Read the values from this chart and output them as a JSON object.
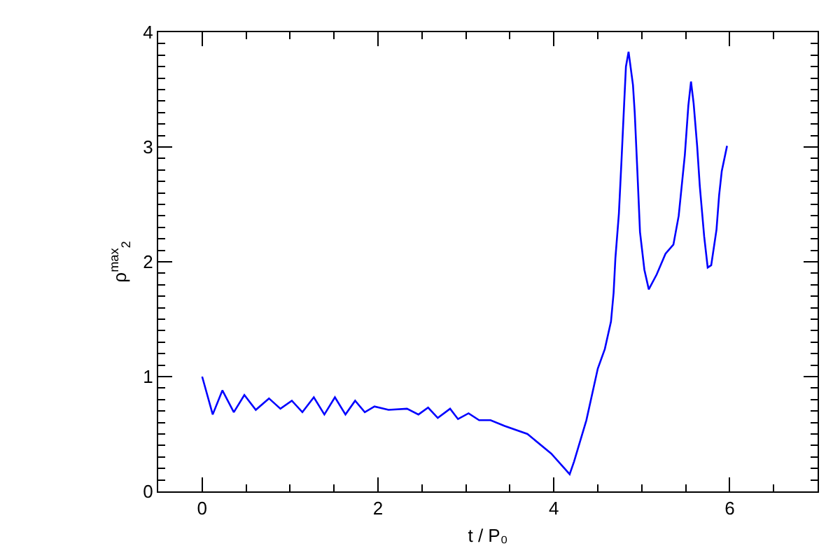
{
  "chart_data": {
    "type": "line",
    "xlabel": "t / P₀",
    "ylabel": "ρ$^{max}$$_{2}$",
    "xlim": [
      -0.5,
      7
    ],
    "ylim": [
      0,
      4
    ],
    "xticks": [
      {
        "value": -0.5,
        "label": null
      },
      0,
      {
        "value": 0.5,
        "label": null
      },
      {
        "value": 1,
        "label": null
      },
      {
        "value": 1.5,
        "label": null
      },
      2,
      {
        "value": 2.5,
        "label": null
      },
      {
        "value": 3,
        "label": null
      },
      {
        "value": 3.5,
        "label": null
      },
      4,
      {
        "value": 4.5,
        "label": null
      },
      {
        "value": 5,
        "label": null
      },
      {
        "value": 5.5,
        "label": null
      },
      6,
      {
        "value": 6.5,
        "label": null
      }
    ],
    "yticks": [
      0,
      {
        "value": 0.1,
        "label": null
      },
      {
        "value": 0.2,
        "label": null
      },
      {
        "value": 0.3,
        "label": null
      },
      {
        "value": 0.4,
        "label": null
      },
      {
        "value": 0.5,
        "label": null
      },
      {
        "value": 0.6,
        "label": null
      },
      {
        "value": 0.7,
        "label": null
      },
      {
        "value": 0.8,
        "label": null
      },
      {
        "value": 0.9,
        "label": null
      },
      1,
      {
        "value": 1.1,
        "label": null
      },
      {
        "value": 1.2,
        "label": null
      },
      {
        "value": 1.3,
        "label": null
      },
      {
        "value": 1.4,
        "label": null
      },
      {
        "value": 1.5,
        "label": null
      },
      {
        "value": 1.6,
        "label": null
      },
      {
        "value": 1.7,
        "label": null
      },
      {
        "value": 1.8,
        "label": null
      },
      {
        "value": 1.9,
        "label": null
      },
      2,
      {
        "value": 2.1,
        "label": null
      },
      {
        "value": 2.2,
        "label": null
      },
      {
        "value": 2.3,
        "label": null
      },
      {
        "value": 2.4,
        "label": null
      },
      {
        "value": 2.5,
        "label": null
      },
      {
        "value": 2.6,
        "label": null
      },
      {
        "value": 2.7,
        "label": null
      },
      {
        "value": 2.8,
        "label": null
      },
      {
        "value": 2.9,
        "label": null
      },
      3,
      {
        "value": 3.1,
        "label": null
      },
      {
        "value": 3.2,
        "label": null
      },
      {
        "value": 3.3,
        "label": null
      },
      {
        "value": 3.4,
        "label": null
      },
      {
        "value": 3.5,
        "label": null
      },
      {
        "value": 3.6,
        "label": null
      },
      {
        "value": 3.7,
        "label": null
      },
      {
        "value": 3.8,
        "label": null
      },
      {
        "value": 3.9,
        "label": null
      },
      4
    ],
    "grid": false,
    "marker": "none",
    "line_style": "solid",
    "x": [
      0,
      0.12,
      0.23,
      0.36,
      0.48,
      0.61,
      0.76,
      0.89,
      1.02,
      1.14,
      1.27,
      1.39,
      1.51,
      1.63,
      1.74,
      1.85,
      1.96,
      2.12,
      2.33,
      2.46,
      2.57,
      2.68,
      2.82,
      2.91,
      3.03,
      3.15,
      3.28,
      3.44,
      3.7,
      3.97,
      4.18,
      4.23,
      4.37,
      4.5,
      4.58,
      4.65,
      4.68,
      4.7,
      4.74,
      4.77,
      4.8,
      4.82,
      4.85,
      4.9,
      4.92,
      4.95,
      4.98,
      5.03,
      5.08,
      5.17,
      5.27,
      5.36,
      5.42,
      5.49,
      5.53,
      5.56,
      5.59,
      5.63,
      5.66,
      5.71,
      5.75,
      5.79,
      5.85,
      5.88,
      5.91,
      5.97
    ],
    "series": [
      {
        "color": "#0000ff",
        "values": [
          1.0,
          0.67,
          0.88,
          0.69,
          0.84,
          0.71,
          0.81,
          0.72,
          0.79,
          0.69,
          0.82,
          0.67,
          0.82,
          0.67,
          0.79,
          0.69,
          0.74,
          0.71,
          0.72,
          0.67,
          0.73,
          0.64,
          0.72,
          0.63,
          0.68,
          0.62,
          0.62,
          0.57,
          0.5,
          0.33,
          0.15,
          0.26,
          0.62,
          1.07,
          1.24,
          1.48,
          1.73,
          2.03,
          2.42,
          2.89,
          3.38,
          3.7,
          3.83,
          3.54,
          3.3,
          2.79,
          2.26,
          1.93,
          1.76,
          1.89,
          2.07,
          2.15,
          2.4,
          2.93,
          3.36,
          3.57,
          3.38,
          3.01,
          2.66,
          2.22,
          1.95,
          1.97,
          2.28,
          2.58,
          2.79,
          3.01
        ]
      }
    ]
  }
}
